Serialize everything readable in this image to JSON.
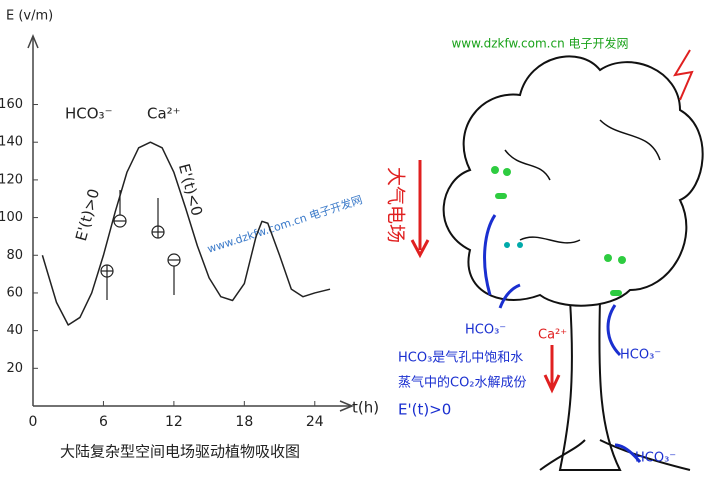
{
  "chart_data": {
    "type": "line",
    "title": "大陆复杂型空间电场驱动植物吸收图",
    "y_label": "E (v/m)",
    "x_label": "t(h)",
    "annotations": [
      "HCO₃⁻",
      "Ca²⁺",
      "E'(t)>0",
      "E'(t)<0"
    ],
    "watermark": "www.dzkfw.com.cn 电子开发网",
    "x": [
      0.8,
      2,
      3,
      4,
      5,
      6,
      7,
      8,
      9,
      10,
      11,
      12,
      13,
      14,
      15,
      16,
      17,
      18,
      19,
      19.5,
      20,
      21,
      22,
      23,
      24,
      25.3
    ],
    "series": [
      {
        "color": "#222222",
        "values": [
          80,
          55,
          43,
          47,
          60,
          80,
          103,
          124,
          137,
          140,
          137,
          124,
          105,
          85,
          68,
          58,
          56,
          65,
          90,
          98,
          97,
          80,
          62,
          58,
          60,
          62
        ]
      }
    ],
    "xlim": [
      0,
      27
    ],
    "ylim": [
      0,
      190
    ],
    "xticks": [
      0,
      6,
      12,
      18,
      24
    ],
    "yticks": [
      20,
      40,
      60,
      80,
      100,
      120,
      140,
      160
    ]
  },
  "diagram": {
    "watermark": "www.dzkfw.com.cn 电子开发网",
    "field_label": "大气电场",
    "labels": [
      "HCO₃⁻",
      "Ca²⁺",
      "HCO₃⁻",
      "HCO₃⁻"
    ],
    "note": [
      "HCO₃是气孔中饱和水",
      "蒸气中的CO₂水解成份"
    ],
    "condition": "E'(t)>0"
  }
}
